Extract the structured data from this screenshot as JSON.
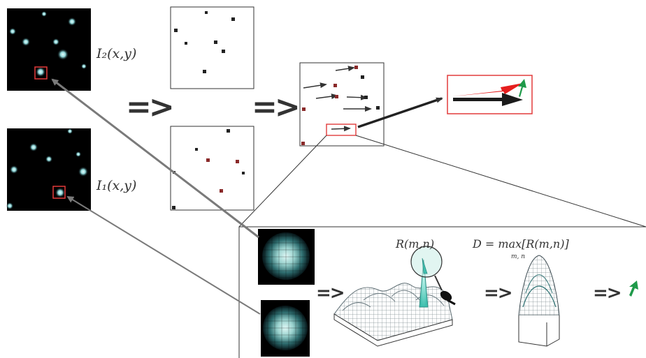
{
  "labels": {
    "i2": "I₂(x,y)",
    "i1": "I₁(x,y)",
    "r_func": "R(m,n)",
    "d_formula": "D = max[R(m,n)]",
    "d_subscript": "m, n"
  },
  "arrows": {
    "big_implies": "=>",
    "small_implies": "=>"
  },
  "colors": {
    "red_box": "#e23b3b",
    "red_vector": "#e61e1e",
    "green_vector": "#1f9a4a",
    "particle_core": "#d6f4f4",
    "particle_halo": "#2f8f99",
    "mesh": "#5a6a70",
    "peak_teal": "#3fbfae"
  },
  "icons": {
    "camera": "camera-icon",
    "magnifier": "magnifier-lens-icon"
  }
}
